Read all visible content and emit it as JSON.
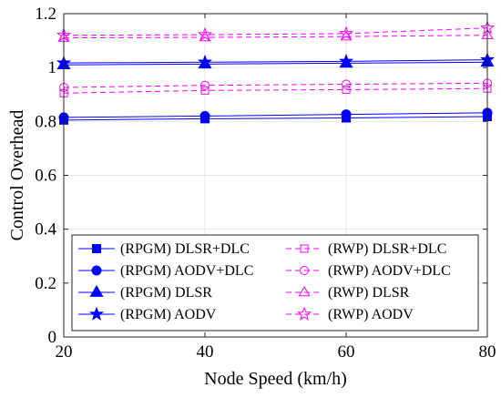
{
  "chart_data": {
    "type": "line",
    "title": "",
    "xlabel": "Node Speed (km/h)",
    "ylabel": "Control Overhead",
    "xlim": [
      20,
      80
    ],
    "ylim": [
      0,
      1.2
    ],
    "xticks": [
      "20",
      "40",
      "60",
      "80"
    ],
    "yticks": [
      "0",
      "0.2",
      "0.4",
      "0.6",
      "0.8",
      "1",
      "1.2"
    ],
    "x": [
      20,
      40,
      60,
      80
    ],
    "grid": true,
    "legend_placement": "bottom",
    "series": [
      {
        "name": "(RPGM) DLSR+DLC",
        "color": "#0000ff",
        "dash": "solid",
        "marker": "square-filled",
        "values": [
          0.805,
          0.81,
          0.813,
          0.818
        ]
      },
      {
        "name": "(RPGM) AODV+DLC",
        "color": "#0000ff",
        "dash": "solid",
        "marker": "circle-filled",
        "values": [
          0.815,
          0.82,
          0.826,
          0.832
        ]
      },
      {
        "name": "(RPGM) DLSR",
        "color": "#0000ff",
        "dash": "solid",
        "marker": "triangle-filled",
        "values": [
          1.01,
          1.013,
          1.016,
          1.02
        ]
      },
      {
        "name": "(RPGM) AODV",
        "color": "#0000ff",
        "dash": "solid",
        "marker": "star-filled",
        "values": [
          1.017,
          1.02,
          1.023,
          1.029
        ]
      },
      {
        "name": "(RWP) DLSR+DLC",
        "color": "#ff00ff",
        "dash": "dashed",
        "marker": "square-open",
        "values": [
          0.905,
          0.915,
          0.918,
          0.922
        ]
      },
      {
        "name": "(RWP) AODV+DLC",
        "color": "#ff00ff",
        "dash": "dashed",
        "marker": "circle-open",
        "values": [
          0.926,
          0.934,
          0.938,
          0.942
        ]
      },
      {
        "name": "(RWP) DLSR",
        "color": "#ff00ff",
        "dash": "dashed",
        "marker": "triangle-open",
        "values": [
          1.11,
          1.112,
          1.115,
          1.12
        ]
      },
      {
        "name": "(RWP) AODV",
        "color": "#ff00ff",
        "dash": "dashed",
        "marker": "star-open",
        "values": [
          1.12,
          1.122,
          1.126,
          1.147
        ]
      }
    ]
  }
}
